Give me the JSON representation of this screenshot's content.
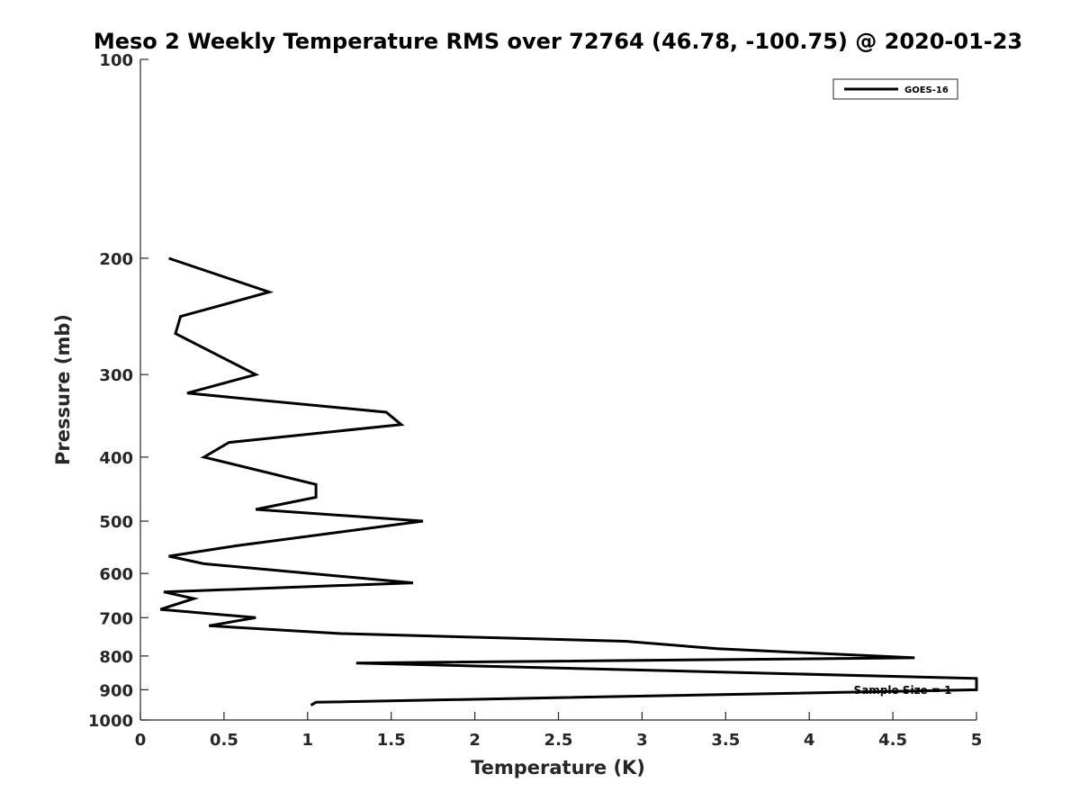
{
  "chart_data": {
    "type": "line",
    "title": "Meso 2 Weekly Temperature RMS over 72764 (46.78, -100.75) @ 2020-01-23",
    "xlabel": "Temperature (K)",
    "ylabel": "Pressure (mb)",
    "xlim": [
      0,
      5
    ],
    "ylim": [
      1000,
      100
    ],
    "y_scale": "log",
    "y_reversed": true,
    "x_ticks": [
      "0",
      "0.5",
      "1",
      "1.5",
      "2",
      "2.5",
      "3",
      "3.5",
      "4",
      "4.5",
      "5"
    ],
    "y_ticks": [
      "100",
      "200",
      "300",
      "400",
      "500",
      "600",
      "700",
      "800",
      "900",
      "1000"
    ],
    "grid": false,
    "legend_position": "top-right",
    "annotation": "Sample Size = 1",
    "series": [
      {
        "name": "GOES-16",
        "color": "#000000",
        "x": [
          0.17,
          0.77,
          0.24,
          0.21,
          0.69,
          0.28,
          1.47,
          1.56,
          0.53,
          0.38,
          1.05,
          1.05,
          0.69,
          1.69,
          0.57,
          0.17,
          0.38,
          1.63,
          0.14,
          0.32,
          0.12,
          0.69,
          0.41,
          1.2,
          2.9,
          3.45,
          4.63,
          1.29,
          5.0,
          5.0,
          1.05,
          1.02
        ],
        "y": [
          200,
          225,
          245,
          260,
          300,
          320,
          342,
          357,
          380,
          400,
          440,
          460,
          480,
          500,
          545,
          565,
          580,
          620,
          640,
          655,
          680,
          700,
          720,
          740,
          760,
          780,
          805,
          820,
          865,
          900,
          940,
          950
        ]
      }
    ]
  }
}
